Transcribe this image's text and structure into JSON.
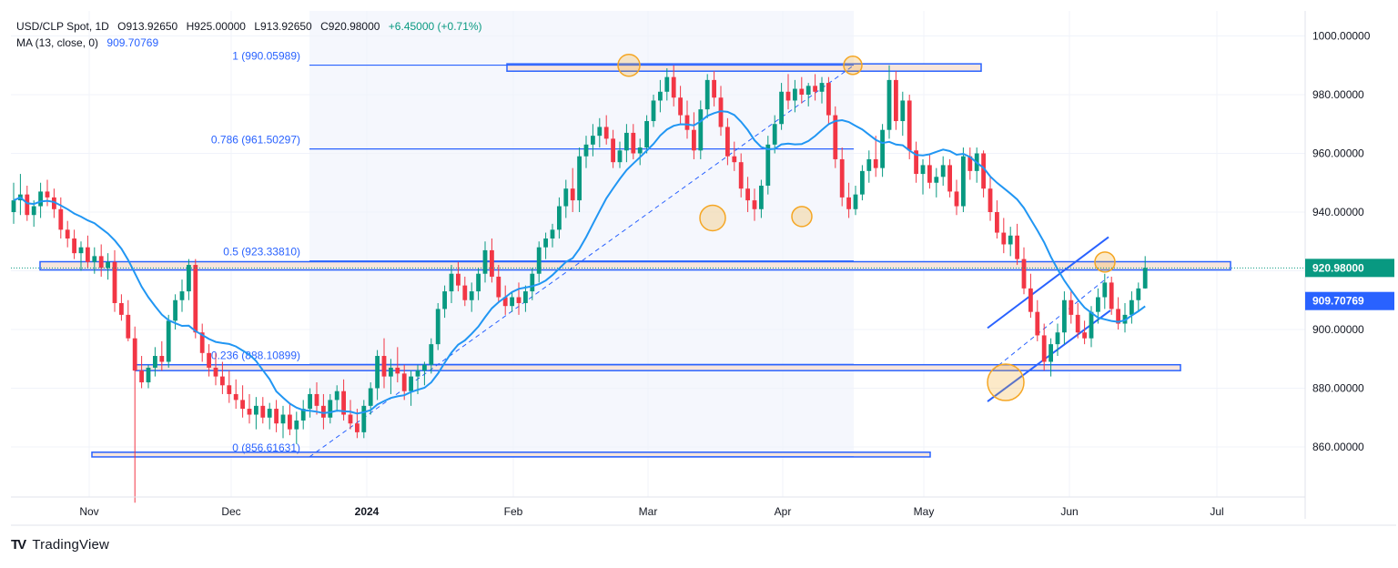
{
  "header": {
    "symbol": "USD/CLP Spot, 1D",
    "open": "O913.92650",
    "high": "H925.00000",
    "low": "L913.92650",
    "close": "C920.98000",
    "change": "+6.45000 (+0.71%)",
    "ma_label": "MA (13, close, 0)",
    "ma_value": "909.70769"
  },
  "brand": {
    "logo": "TV",
    "name": "TradingView"
  },
  "colors": {
    "up": "#089981",
    "down": "#f23645",
    "ma": "#2196f3",
    "fib": "#2962ff",
    "zone_fill": "#f8e6dc",
    "highlight": "#f5a623",
    "price_tag": "#089981",
    "ma_tag": "#2962ff"
  },
  "chart_data": {
    "type": "candlestick",
    "title": "USD/CLP Spot, 1D",
    "y_axis": {
      "ticks": [
        "1000.00000",
        "980.00000",
        "960.00000",
        "940.00000",
        "920.00000",
        "900.00000",
        "880.00000",
        "860.00000"
      ],
      "ylim": [
        842,
        1008
      ]
    },
    "x_axis": {
      "labels": [
        "Nov",
        "Dec",
        "2024",
        "Feb",
        "Mar",
        "Apr",
        "May",
        "Jun",
        "Jul"
      ]
    },
    "last_price": "920.98000",
    "ma_last": "909.70769",
    "fib_levels": [
      {
        "label": "1 (990.05989)",
        "value": 990.05989
      },
      {
        "label": "0.786 (961.50297)",
        "value": 961.50297
      },
      {
        "label": "0.5 (923.33810)",
        "value": 923.3381
      },
      {
        "label": "0.236 (888.10899)",
        "value": 888.10899
      },
      {
        "label": "0 (856.61631)",
        "value": 856.61631
      }
    ],
    "candles": [
      [
        940,
        950,
        936,
        944
      ],
      [
        944,
        953,
        939,
        946
      ],
      [
        946,
        949,
        937,
        939
      ],
      [
        939,
        944,
        935,
        942
      ],
      [
        942,
        950,
        938,
        947
      ],
      [
        947,
        951,
        942,
        945
      ],
      [
        945,
        948,
        938,
        941
      ],
      [
        941,
        945,
        931,
        934
      ],
      [
        934,
        937,
        928,
        931
      ],
      [
        931,
        934,
        924,
        926
      ],
      [
        926,
        930,
        920,
        928
      ],
      [
        928,
        932,
        921,
        923
      ],
      [
        923,
        928,
        919,
        925
      ],
      [
        925,
        929,
        918,
        921
      ],
      [
        921,
        926,
        917,
        923
      ],
      [
        923,
        927,
        906,
        909
      ],
      [
        909,
        912,
        903,
        905
      ],
      [
        905,
        910,
        896,
        897
      ],
      [
        897,
        901,
        841,
        886
      ],
      [
        886,
        891,
        880,
        882
      ],
      [
        882,
        888,
        880,
        887
      ],
      [
        887,
        894,
        884,
        891
      ],
      [
        891,
        896,
        886,
        889
      ],
      [
        889,
        905,
        887,
        903
      ],
      [
        903,
        912,
        900,
        910
      ],
      [
        910,
        917,
        906,
        913
      ],
      [
        913,
        924,
        910,
        922
      ],
      [
        922,
        924,
        897,
        899
      ],
      [
        899,
        902,
        889,
        892
      ],
      [
        892,
        895,
        884,
        887
      ],
      [
        887,
        892,
        881,
        884
      ],
      [
        884,
        889,
        878,
        881
      ],
      [
        881,
        886,
        875,
        878
      ],
      [
        878,
        883,
        873,
        876
      ],
      [
        876,
        881,
        870,
        873
      ],
      [
        873,
        878,
        868,
        871
      ],
      [
        871,
        877,
        866,
        874
      ],
      [
        874,
        877,
        868,
        870
      ],
      [
        870,
        875,
        866,
        873
      ],
      [
        873,
        876,
        865,
        868
      ],
      [
        868,
        874,
        863,
        871
      ],
      [
        871,
        875,
        864,
        866
      ],
      [
        866,
        872,
        861,
        869
      ],
      [
        869,
        876,
        866,
        873
      ],
      [
        873,
        880,
        870,
        878
      ],
      [
        878,
        882,
        871,
        874
      ],
      [
        874,
        878,
        866,
        870
      ],
      [
        870,
        878,
        868,
        876
      ],
      [
        876,
        881,
        872,
        879
      ],
      [
        879,
        883,
        869,
        871
      ],
      [
        871,
        876,
        866,
        868
      ],
      [
        868,
        873,
        863,
        865
      ],
      [
        865,
        876,
        863,
        874
      ],
      [
        874,
        882,
        871,
        880
      ],
      [
        880,
        893,
        876,
        891
      ],
      [
        891,
        897,
        880,
        884
      ],
      [
        884,
        890,
        878,
        887
      ],
      [
        887,
        894,
        882,
        885
      ],
      [
        885,
        888,
        876,
        879
      ],
      [
        879,
        886,
        874,
        884
      ],
      [
        884,
        888,
        878,
        886
      ],
      [
        886,
        889,
        881,
        888
      ],
      [
        888,
        897,
        885,
        895
      ],
      [
        895,
        909,
        893,
        907
      ],
      [
        907,
        915,
        904,
        913
      ],
      [
        913,
        922,
        909,
        919
      ],
      [
        919,
        923,
        913,
        915
      ],
      [
        915,
        918,
        908,
        910
      ],
      [
        910,
        916,
        906,
        913
      ],
      [
        913,
        921,
        910,
        919
      ],
      [
        919,
        930,
        916,
        927
      ],
      [
        927,
        931,
        916,
        918
      ],
      [
        918,
        922,
        909,
        911
      ],
      [
        911,
        915,
        905,
        908
      ],
      [
        908,
        913,
        906,
        911
      ],
      [
        911,
        916,
        905,
        909
      ],
      [
        909,
        915,
        906,
        913
      ],
      [
        913,
        921,
        910,
        919
      ],
      [
        919,
        930,
        916,
        928
      ],
      [
        928,
        933,
        924,
        931
      ],
      [
        931,
        936,
        928,
        934
      ],
      [
        934,
        945,
        931,
        942
      ],
      [
        942,
        951,
        938,
        948
      ],
      [
        948,
        955,
        940,
        944
      ],
      [
        944,
        962,
        940,
        959
      ],
      [
        959,
        966,
        955,
        963
      ],
      [
        963,
        970,
        959,
        966
      ],
      [
        966,
        972,
        962,
        969
      ],
      [
        969,
        973,
        963,
        965
      ],
      [
        965,
        968,
        955,
        957
      ],
      [
        957,
        964,
        955,
        961
      ],
      [
        961,
        970,
        957,
        967
      ],
      [
        967,
        970,
        958,
        960
      ],
      [
        960,
        965,
        956,
        962
      ],
      [
        962,
        973,
        960,
        971
      ],
      [
        971,
        980,
        969,
        978
      ],
      [
        978,
        985,
        974,
        981
      ],
      [
        981,
        989,
        978,
        986
      ],
      [
        986,
        990,
        976,
        979
      ],
      [
        979,
        983,
        970,
        973
      ],
      [
        973,
        978,
        965,
        968
      ],
      [
        968,
        974,
        958,
        961
      ],
      [
        961,
        978,
        958,
        975
      ],
      [
        975,
        987,
        972,
        985
      ],
      [
        985,
        988,
        976,
        979
      ],
      [
        979,
        983,
        966,
        969
      ],
      [
        969,
        972,
        956,
        959
      ],
      [
        959,
        964,
        954,
        957
      ],
      [
        957,
        960,
        945,
        948
      ],
      [
        948,
        952,
        940,
        944
      ],
      [
        944,
        948,
        937,
        941
      ],
      [
        941,
        951,
        938,
        949
      ],
      [
        949,
        966,
        946,
        963
      ],
      [
        963,
        973,
        960,
        970
      ],
      [
        970,
        984,
        968,
        981
      ],
      [
        981,
        987,
        975,
        978
      ],
      [
        978,
        985,
        974,
        982
      ],
      [
        982,
        986,
        977,
        980
      ],
      [
        980,
        984,
        976,
        983
      ],
      [
        983,
        987,
        978,
        981
      ],
      [
        981,
        986,
        977,
        984
      ],
      [
        984,
        986,
        970,
        973
      ],
      [
        973,
        976,
        955,
        958
      ],
      [
        958,
        962,
        942,
        945
      ],
      [
        945,
        950,
        938,
        941
      ],
      [
        941,
        949,
        939,
        946
      ],
      [
        946,
        956,
        944,
        954
      ],
      [
        954,
        961,
        950,
        958
      ],
      [
        958,
        966,
        952,
        955
      ],
      [
        955,
        970,
        952,
        968
      ],
      [
        968,
        990,
        965,
        985
      ],
      [
        985,
        988,
        968,
        971
      ],
      [
        971,
        981,
        966,
        978
      ],
      [
        978,
        980,
        958,
        961
      ],
      [
        961,
        964,
        950,
        953
      ],
      [
        953,
        958,
        946,
        956
      ],
      [
        956,
        960,
        948,
        950
      ],
      [
        950,
        955,
        945,
        952
      ],
      [
        952,
        959,
        949,
        956
      ],
      [
        956,
        958,
        945,
        947
      ],
      [
        947,
        951,
        939,
        942
      ],
      [
        942,
        962,
        940,
        959
      ],
      [
        959,
        962,
        951,
        954
      ],
      [
        954,
        962,
        950,
        960
      ],
      [
        960,
        961,
        945,
        948
      ],
      [
        948,
        952,
        937,
        940
      ],
      [
        940,
        944,
        931,
        933
      ],
      [
        933,
        938,
        926,
        929
      ],
      [
        929,
        935,
        925,
        932
      ],
      [
        932,
        936,
        922,
        924
      ],
      [
        924,
        928,
        912,
        914
      ],
      [
        914,
        919,
        904,
        906
      ],
      [
        906,
        910,
        896,
        898
      ],
      [
        898,
        902,
        886,
        889
      ],
      [
        889,
        897,
        884,
        895
      ],
      [
        895,
        902,
        891,
        899
      ],
      [
        899,
        913,
        895,
        910
      ],
      [
        910,
        913,
        902,
        905
      ],
      [
        905,
        909,
        897,
        899
      ],
      [
        899,
        903,
        895,
        897
      ],
      [
        897,
        908,
        894,
        906
      ],
      [
        906,
        914,
        902,
        911
      ],
      [
        911,
        919,
        907,
        916
      ],
      [
        916,
        918,
        905,
        907
      ],
      [
        907,
        911,
        900,
        902
      ],
      [
        902,
        909,
        899,
        905
      ],
      [
        905,
        913,
        902,
        910
      ],
      [
        910,
        916,
        906,
        914
      ],
      [
        914,
        925,
        913.9,
        921
      ]
    ]
  }
}
